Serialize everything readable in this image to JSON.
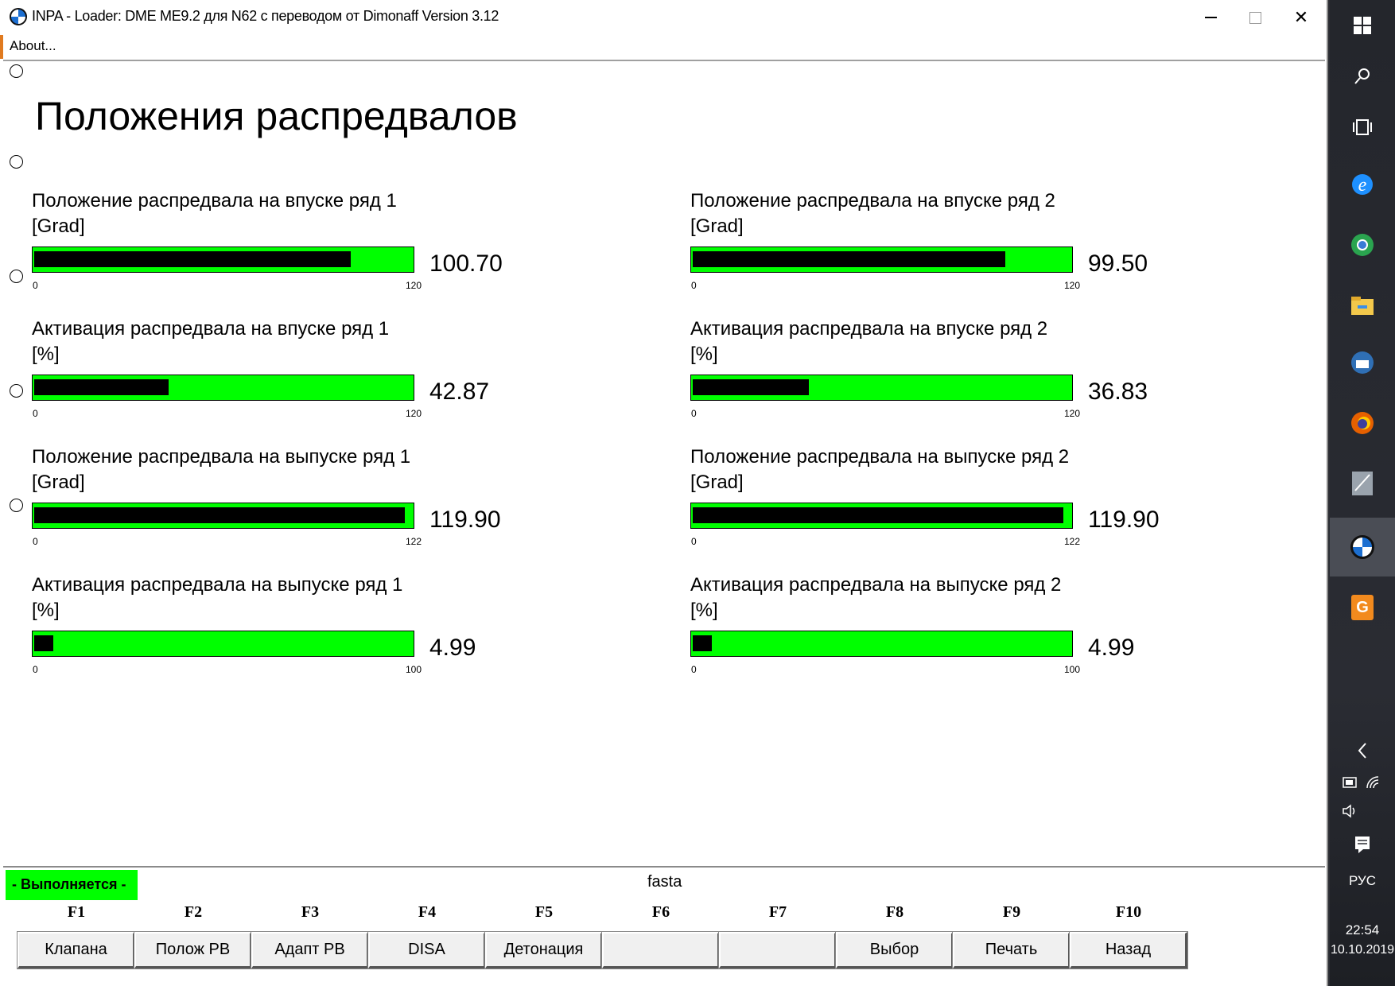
{
  "window": {
    "title": "INPA - Loader:  DME ME9.2 для N62 с переводом от Dimonaff Version 3.12",
    "menu": [
      "About..."
    ]
  },
  "page_title": "Положения распредвалов",
  "gauges": [
    {
      "label": "Положение распредвала на впуске ряд 1",
      "unit": "[Grad]",
      "value": "100.70",
      "min": "0",
      "max": "120",
      "fill_fraction": 0.839
    },
    {
      "label": "Положение распредвала на впуске ряд 2",
      "unit": "[Grad]",
      "value": "99.50",
      "min": "0",
      "max": "120",
      "fill_fraction": 0.829
    },
    {
      "label": "Активация распредвала на впуске ряд 1",
      "unit": "[%]",
      "value": "42.87",
      "min": "0",
      "max": "120",
      "fill_fraction": 0.357
    },
    {
      "label": "Активация распредвала на впуске ряд 2",
      "unit": "[%]",
      "value": "36.83",
      "min": "0",
      "max": "120",
      "fill_fraction": 0.307
    },
    {
      "label": "Положение распредвала на выпуске ряд 1",
      "unit": "[Grad]",
      "value": "119.90",
      "min": "0",
      "max": "122",
      "fill_fraction": 0.983
    },
    {
      "label": "Положение распредвала на выпуске ряд 2",
      "unit": "[Grad]",
      "value": "119.90",
      "min": "0",
      "max": "122",
      "fill_fraction": 0.983
    },
    {
      "label": "Активация распредвала на выпуске ряд 1",
      "unit": "[%]",
      "value": "4.99",
      "min": "0",
      "max": "100",
      "fill_fraction": 0.0499
    },
    {
      "label": "Активация распредвала на выпуске ряд 2",
      "unit": "[%]",
      "value": "4.99",
      "min": "0",
      "max": "100",
      "fill_fraction": 0.0499
    }
  ],
  "status": {
    "running_text": "- Выполняется -",
    "center_text": "fasta",
    "running_color": "#00ff00"
  },
  "fkeys": [
    {
      "key": "F1",
      "label": "Клапана"
    },
    {
      "key": "F2",
      "label": "Полож РВ"
    },
    {
      "key": "F3",
      "label": "Адапт РВ"
    },
    {
      "key": "F4",
      "label": "DISA"
    },
    {
      "key": "F5",
      "label": "Детонация"
    },
    {
      "key": "F6",
      "label": ""
    },
    {
      "key": "F7",
      "label": ""
    },
    {
      "key": "F8",
      "label": "Выбор"
    },
    {
      "key": "F9",
      "label": "Печать"
    },
    {
      "key": "F10",
      "label": "Назад"
    }
  ],
  "colors": {
    "bar_background": "#00ff00",
    "bar_fill": "#000000"
  },
  "taskbar": {
    "icons": [
      "windows-start-icon",
      "search-icon",
      "task-view-icon",
      "internet-explorer-icon",
      "chrome-icon",
      "file-explorer-icon",
      "thunderbird-icon",
      "firefox-icon",
      "ista-icon",
      "bmw-inpa-icon",
      "orange-app-icon"
    ],
    "language": "РУС",
    "time": "22:54",
    "date": "10.10.2019"
  }
}
